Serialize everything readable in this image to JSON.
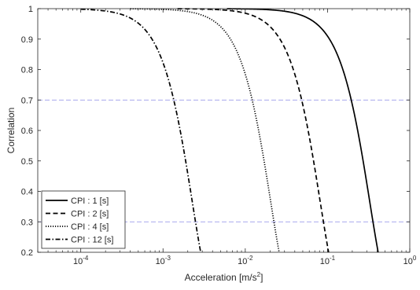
{
  "chart_data": {
    "type": "line",
    "xlabel_text": "Acceleration [m/s",
    "xlabel_sup": "2",
    "xlabel_close": "]",
    "ylabel": "Correlation",
    "xscale": "log",
    "xlim": [
      3e-05,
      1
    ],
    "ylim": [
      0.2,
      1
    ],
    "x_ticks": [
      {
        "base": "10",
        "exp": "-4",
        "value": 0.0001
      },
      {
        "base": "10",
        "exp": "-3",
        "value": 0.001
      },
      {
        "base": "10",
        "exp": "-2",
        "value": 0.01
      },
      {
        "base": "10",
        "exp": "-1",
        "value": 0.1
      },
      {
        "base": "10",
        "exp": "0",
        "value": 1
      }
    ],
    "y_ticks": [
      "0.2",
      "0.3",
      "0.4",
      "0.5",
      "0.6",
      "0.7",
      "0.8",
      "0.9",
      "1"
    ],
    "reference_lines": [
      {
        "y": 0.7,
        "color": "#8c8ce8",
        "style": "dashed"
      },
      {
        "y": 0.3,
        "color": "#8c8ce8",
        "style": "dashed"
      }
    ],
    "legend_position": "bottom-left",
    "series": [
      {
        "name": "CPI : 1 [s]",
        "style": "solid",
        "a0": 0.4127,
        "start_x": 0.006
      },
      {
        "name": "CPI : 2 [s]",
        "style": "dashed",
        "a0": 0.1031,
        "start_x": 0.0015
      },
      {
        "name": "CPI : 4 [s]",
        "style": "dotted",
        "a0": 0.0258,
        "start_x": 0.0004
      },
      {
        "name": "CPI : 12 [s]",
        "style": "dashdot",
        "a0": 0.00287,
        "start_x": 0.0001
      }
    ]
  }
}
